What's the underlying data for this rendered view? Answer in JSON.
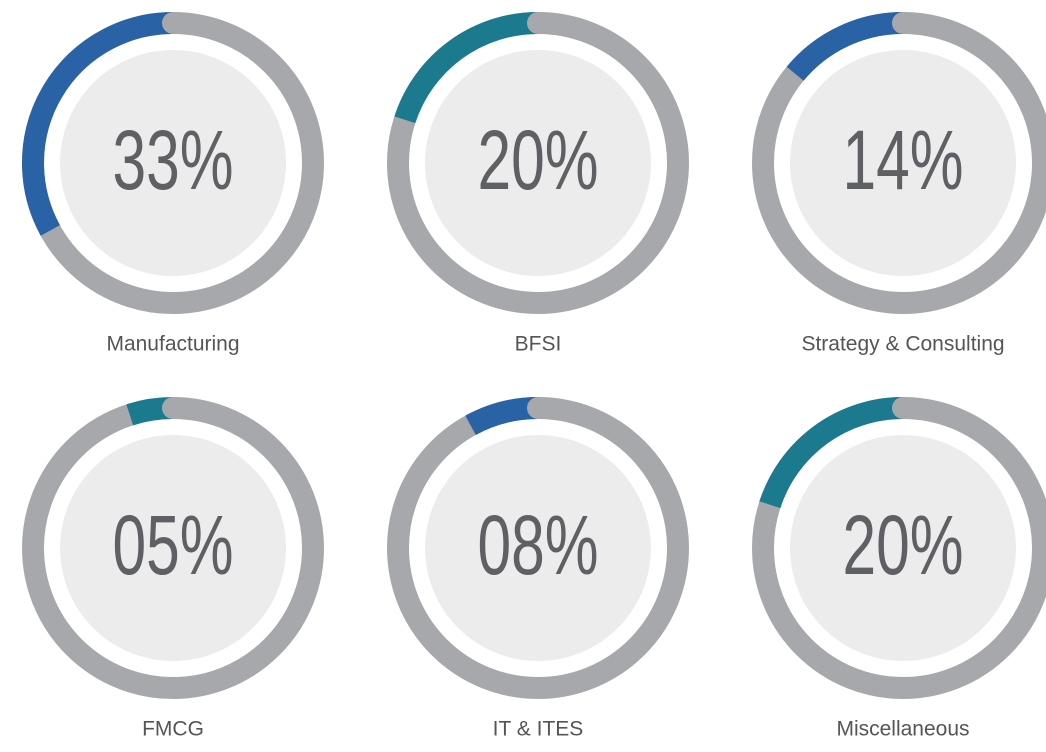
{
  "chart_data": {
    "type": "donut",
    "categories": [
      "Manufacturing",
      "BFSI",
      "Strategy & Consulting",
      "FMCG",
      "IT & ITES",
      "Miscellaneous"
    ],
    "values": [
      33,
      20,
      14,
      5,
      8,
      20
    ],
    "value_labels": [
      "33%",
      "20%",
      "14%",
      "05%",
      "08%",
      "20%"
    ],
    "colors": [
      "#2a62a6",
      "#1b7a8e",
      "#2a62a6",
      "#1b7a8e",
      "#2a62a6",
      "#1b7a8e"
    ],
    "track_color": "#a7a8ac"
  }
}
